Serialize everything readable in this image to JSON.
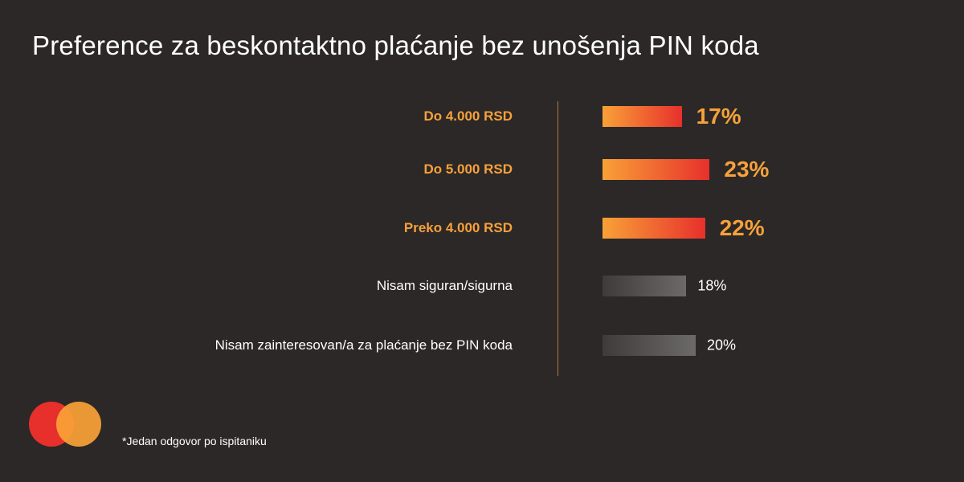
{
  "chart_data": {
    "type": "bar",
    "orientation": "horizontal",
    "title": "Preference za beskontaktno plaćanje bez unošenja PIN koda",
    "categories": [
      "Do 4.000 RSD",
      "Do 5.000 RSD",
      "Preko 4.000 RSD",
      "Nisam siguran/sigurna",
      "Nisam zainteresovan/a za plaćanje bez PIN koda"
    ],
    "values": [
      17,
      23,
      22,
      18,
      20
    ],
    "value_labels": [
      "17%",
      "23%",
      "22%",
      "18%",
      "20%"
    ],
    "highlighted": [
      true,
      true,
      true,
      false,
      false
    ],
    "unit": "%",
    "grid": false,
    "colors": {
      "highlight_start": "#f9a137",
      "highlight_end": "#e7302c",
      "muted_start": "#3e3b3a",
      "muted_end": "#6c6a69",
      "highlight_text": "#f7a13a"
    }
  },
  "footnote": "*Jedan odgovor po ispitaniku",
  "logo": {
    "icon": "mastercard-logo-icon",
    "colors": [
      "#e7302c",
      "#f9a137"
    ]
  }
}
